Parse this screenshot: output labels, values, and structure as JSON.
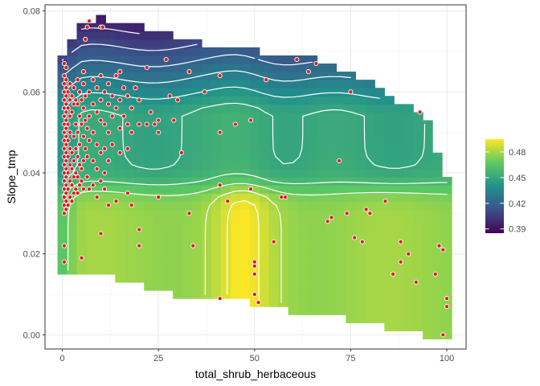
{
  "chart_data": {
    "type": "heatmap",
    "title": "",
    "xlabel": "total_shrub_herbaceous",
    "ylabel": "Slope_tmp",
    "xlim": [
      -4.5,
      105
    ],
    "ylim": [
      -0.0035,
      0.0815
    ],
    "x_ticks": [
      {
        "value": 0,
        "label": "0"
      },
      {
        "value": 25,
        "label": "25"
      },
      {
        "value": 50,
        "label": "50"
      },
      {
        "value": 75,
        "label": "75"
      },
      {
        "value": 100,
        "label": "100"
      }
    ],
    "y_ticks": [
      {
        "value": 0.0,
        "label": "0.00"
      },
      {
        "value": 0.02,
        "label": "0.02"
      },
      {
        "value": 0.04,
        "label": "0.04"
      },
      {
        "value": 0.06,
        "label": "0.06"
      },
      {
        "value": 0.08,
        "label": "0.08"
      }
    ],
    "grid": true,
    "fill_range": [
      0.385,
      0.495
    ],
    "color_scale": [
      "#440154",
      "#3b528b",
      "#21918c",
      "#5ec962",
      "#fde725"
    ],
    "legend": {
      "position": "right",
      "ticks": [
        {
          "value": 0.48,
          "label": "0.48"
        },
        {
          "value": 0.45,
          "label": "0.45"
        },
        {
          "value": 0.42,
          "label": "0.42"
        },
        {
          "value": 0.39,
          "label": "0.39"
        }
      ]
    },
    "point_color": "#e31a1c",
    "contour_color": "#ffffff",
    "coverage": {
      "x": [
        0,
        5,
        10,
        15,
        20,
        25,
        30,
        35,
        40,
        45,
        50,
        55,
        60,
        65,
        70,
        75,
        80,
        85,
        90,
        95,
        100
      ],
      "y_min": [
        0.017,
        0.017,
        0.0165,
        0.015,
        0.0135,
        0.012,
        0.011,
        0.0105,
        0.01,
        0.0095,
        0.009,
        0.008,
        0.007,
        0.0065,
        0.006,
        0.005,
        0.004,
        0.003,
        0.002,
        0.001,
        0.0
      ],
      "y_max": [
        0.068,
        0.075,
        0.077,
        0.076,
        0.075,
        0.074,
        0.0725,
        0.071,
        0.07,
        0.0695,
        0.069,
        0.0685,
        0.068,
        0.067,
        0.066,
        0.0635,
        0.061,
        0.058,
        0.055,
        0.051,
        0.037
      ]
    },
    "points": [
      [
        0.5,
        0.067
      ],
      [
        0.5,
        0.064
      ],
      [
        0.5,
        0.062
      ],
      [
        0.5,
        0.06
      ],
      [
        0.5,
        0.058
      ],
      [
        0.5,
        0.056
      ],
      [
        0.5,
        0.054
      ],
      [
        0.5,
        0.052
      ],
      [
        0.5,
        0.05
      ],
      [
        0.5,
        0.048
      ],
      [
        0.5,
        0.046
      ],
      [
        0.5,
        0.044
      ],
      [
        0.5,
        0.042
      ],
      [
        0.5,
        0.04
      ],
      [
        0.5,
        0.038
      ],
      [
        0.5,
        0.036
      ],
      [
        0.5,
        0.034
      ],
      [
        0.5,
        0.032
      ],
      [
        0.5,
        0.03
      ],
      [
        0.5,
        0.022
      ],
      [
        0.5,
        0.018
      ],
      [
        1,
        0.066
      ],
      [
        1,
        0.063
      ],
      [
        1,
        0.061
      ],
      [
        1,
        0.059
      ],
      [
        1,
        0.057
      ],
      [
        1,
        0.055
      ],
      [
        1,
        0.053
      ],
      [
        1,
        0.051
      ],
      [
        1,
        0.049
      ],
      [
        1,
        0.047
      ],
      [
        1,
        0.045
      ],
      [
        1,
        0.043
      ],
      [
        1,
        0.041
      ],
      [
        1,
        0.039
      ],
      [
        1,
        0.037
      ],
      [
        1,
        0.035
      ],
      [
        1,
        0.033
      ],
      [
        1,
        0.031
      ],
      [
        1.5,
        0.06
      ],
      [
        1.5,
        0.056
      ],
      [
        1.5,
        0.052
      ],
      [
        1.5,
        0.048
      ],
      [
        1.5,
        0.044
      ],
      [
        1.5,
        0.04
      ],
      [
        1.5,
        0.036
      ],
      [
        1.5,
        0.032
      ],
      [
        2,
        0.062
      ],
      [
        2,
        0.058
      ],
      [
        2,
        0.054
      ],
      [
        2,
        0.05
      ],
      [
        2,
        0.046
      ],
      [
        2,
        0.042
      ],
      [
        2,
        0.038
      ],
      [
        2,
        0.034
      ],
      [
        2.5,
        0.059
      ],
      [
        2.5,
        0.055
      ],
      [
        2.5,
        0.045
      ],
      [
        2.5,
        0.041
      ],
      [
        2.5,
        0.037
      ],
      [
        2.5,
        0.033
      ],
      [
        3,
        0.061
      ],
      [
        3,
        0.057
      ],
      [
        3,
        0.049
      ],
      [
        3,
        0.043
      ],
      [
        3,
        0.039
      ],
      [
        3,
        0.035
      ],
      [
        3.5,
        0.058
      ],
      [
        3.5,
        0.052
      ],
      [
        3.5,
        0.046
      ],
      [
        3.5,
        0.04
      ],
      [
        3.5,
        0.036
      ],
      [
        4,
        0.063
      ],
      [
        4,
        0.057
      ],
      [
        4,
        0.05
      ],
      [
        4,
        0.044
      ],
      [
        4,
        0.039
      ],
      [
        4,
        0.035
      ],
      [
        4.5,
        0.06
      ],
      [
        4.5,
        0.054
      ],
      [
        4.5,
        0.047
      ],
      [
        4.5,
        0.042
      ],
      [
        4.5,
        0.037
      ],
      [
        5,
        0.058
      ],
      [
        5,
        0.052
      ],
      [
        5,
        0.041
      ],
      [
        5,
        0.038
      ],
      [
        5,
        0.019
      ],
      [
        5.5,
        0.065
      ],
      [
        5.5,
        0.062
      ],
      [
        5.5,
        0.056
      ],
      [
        5.5,
        0.049
      ],
      [
        5.5,
        0.043
      ],
      [
        5.5,
        0.036
      ],
      [
        6,
        0.073
      ],
      [
        6,
        0.059
      ],
      [
        6,
        0.053
      ],
      [
        6,
        0.046
      ],
      [
        6.5,
        0.076
      ],
      [
        6.5,
        0.051
      ],
      [
        6.5,
        0.044
      ],
      [
        6.5,
        0.039
      ],
      [
        7,
        0.0775
      ],
      [
        7,
        0.06
      ],
      [
        7,
        0.054
      ],
      [
        7,
        0.048
      ],
      [
        7,
        0.036
      ],
      [
        8,
        0.063
      ],
      [
        8,
        0.057
      ],
      [
        8,
        0.05
      ],
      [
        8,
        0.043
      ],
      [
        8,
        0.037
      ],
      [
        9,
        0.061
      ],
      [
        9,
        0.055
      ],
      [
        9,
        0.047
      ],
      [
        9,
        0.041
      ],
      [
        9,
        0.034
      ],
      [
        10,
        0.076
      ],
      [
        10,
        0.064
      ],
      [
        10,
        0.058
      ],
      [
        10,
        0.053
      ],
      [
        10,
        0.045
      ],
      [
        10,
        0.038
      ],
      [
        10,
        0.025
      ],
      [
        10.5,
        0.076
      ],
      [
        11,
        0.06
      ],
      [
        11,
        0.052
      ],
      [
        11,
        0.046
      ],
      [
        11,
        0.04
      ],
      [
        11,
        0.036
      ],
      [
        12,
        0.062
      ],
      [
        12,
        0.057
      ],
      [
        12,
        0.05
      ],
      [
        12,
        0.043
      ],
      [
        12,
        0.032
      ],
      [
        13,
        0.059
      ],
      [
        13,
        0.054
      ],
      [
        13,
        0.047
      ],
      [
        14,
        0.064
      ],
      [
        14,
        0.056
      ],
      [
        14,
        0.033
      ],
      [
        15,
        0.065
      ],
      [
        15,
        0.058
      ],
      [
        15,
        0.051
      ],
      [
        15,
        0.045
      ],
      [
        16,
        0.061
      ],
      [
        16,
        0.054
      ],
      [
        17,
        0.059
      ],
      [
        17,
        0.052
      ],
      [
        17,
        0.046
      ],
      [
        17,
        0.035
      ],
      [
        18,
        0.056
      ],
      [
        18,
        0.05
      ],
      [
        18,
        0.032
      ],
      [
        19,
        0.061
      ],
      [
        20,
        0.058
      ],
      [
        20,
        0.052
      ],
      [
        20,
        0.026
      ],
      [
        20,
        0.022
      ],
      [
        22,
        0.066
      ],
      [
        22,
        0.052
      ],
      [
        23,
        0.055
      ],
      [
        24,
        0.052
      ],
      [
        25,
        0.053
      ],
      [
        25,
        0.05
      ],
      [
        25,
        0.034
      ],
      [
        27,
        0.068
      ],
      [
        28,
        0.059
      ],
      [
        29,
        0.053
      ],
      [
        30,
        0.058
      ],
      [
        31,
        0.045
      ],
      [
        33,
        0.065
      ],
      [
        33,
        0.03
      ],
      [
        34,
        0.022
      ],
      [
        37,
        0.06
      ],
      [
        41,
        0.009
      ],
      [
        41,
        0.064
      ],
      [
        41,
        0.05
      ],
      [
        41,
        0.037
      ],
      [
        43,
        0.033
      ],
      [
        45,
        0.052
      ],
      [
        49,
        0.053
      ],
      [
        49,
        0.036
      ],
      [
        50,
        0.01
      ],
      [
        50,
        0.015
      ],
      [
        50,
        0.017
      ],
      [
        50,
        0.018
      ],
      [
        51,
        0.008
      ],
      [
        53,
        0.063
      ],
      [
        55,
        0.023
      ],
      [
        57,
        0.034
      ],
      [
        58,
        0.034
      ],
      [
        61,
        0.068
      ],
      [
        64,
        0.065
      ],
      [
        66,
        0.067
      ],
      [
        69,
        0.028
      ],
      [
        70,
        0.029
      ],
      [
        72,
        0.043
      ],
      [
        74,
        0.03
      ],
      [
        75,
        0.06
      ],
      [
        76,
        0.024
      ],
      [
        78,
        0.023
      ],
      [
        79,
        0.031
      ],
      [
        80,
        0.03
      ],
      [
        84,
        0.033
      ],
      [
        86,
        0.015
      ],
      [
        88,
        0.018
      ],
      [
        88,
        0.023
      ],
      [
        90,
        0.02
      ],
      [
        92,
        0.013
      ],
      [
        93,
        0.055
      ],
      [
        97,
        0.015
      ],
      [
        98,
        0.022
      ],
      [
        99,
        0.021
      ],
      [
        99,
        0.0
      ],
      [
        100,
        0.007
      ],
      [
        100,
        0.009
      ]
    ]
  }
}
